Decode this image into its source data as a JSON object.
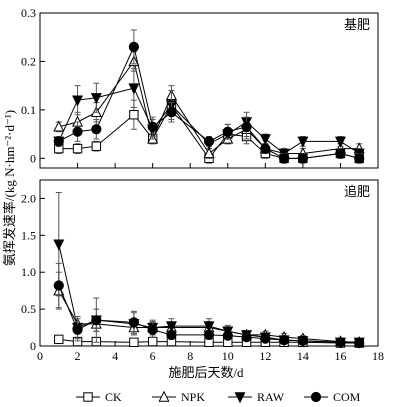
{
  "chart_data": {
    "type": "line",
    "xlabel": "施肥后天数/d",
    "ylabel": "氨挥发速率/(kg N·hm⁻²·d⁻¹)",
    "x": [
      1,
      2,
      3,
      5,
      6,
      7,
      9,
      10,
      11,
      12,
      13,
      14,
      16,
      17
    ],
    "x_range": [
      0,
      18
    ],
    "x_ticks": [
      "0",
      "2",
      "4",
      "6",
      "8",
      "10",
      "12",
      "14",
      "16",
      "18"
    ],
    "legend_position": "bottom",
    "series_styles": [
      {
        "name": "CK",
        "marker": "square-open"
      },
      {
        "name": "NPK",
        "marker": "triangle-up-open"
      },
      {
        "name": "RAW",
        "marker": "triangle-down-filled"
      },
      {
        "name": "COM",
        "marker": "circle-filled"
      }
    ],
    "panels": [
      {
        "tag": "基肥",
        "ylim": [
          -0.02,
          0.3
        ],
        "y_ticks": [
          "0",
          "0.1",
          "0.2",
          "0.3"
        ],
        "series": [
          {
            "name": "CK",
            "y": [
              0.02,
              0.02,
              0.025,
              0.09,
              0.04,
              0.11,
              0.0,
              0.05,
              0.045,
              0.01,
              0.0,
              0.0,
              0.01,
              0.0
            ],
            "err": [
              0.01,
              0.01,
              0.01,
              0.03,
              0.01,
              0.02,
              0.01,
              0.02,
              0.015,
              0.01,
              0.01,
              0.01,
              0.01,
              0.01
            ]
          },
          {
            "name": "NPK",
            "y": [
              0.065,
              0.075,
              0.095,
              0.2,
              0.04,
              0.13,
              0.01,
              0.04,
              0.06,
              0.02,
              0.01,
              0.01,
              0.02,
              0.02
            ],
            "err": [
              0.01,
              0.02,
              0.02,
              0.02,
              0.01,
              0.02,
              0.01,
              0.01,
              0.02,
              0.01,
              0.01,
              0.01,
              0.01,
              0.01
            ]
          },
          {
            "name": "RAW",
            "y": [
              0.035,
              0.12,
              0.125,
              0.145,
              0.06,
              0.11,
              0.03,
              0.05,
              0.075,
              0.04,
              0.01,
              0.035,
              0.035,
              0.01
            ],
            "err": [
              0.01,
              0.03,
              0.03,
              0.04,
              0.02,
              0.03,
              0.01,
              0.01,
              0.02,
              0.01,
              0.01,
              0.01,
              0.01,
              0.01
            ]
          },
          {
            "name": "COM",
            "y": [
              0.035,
              0.055,
              0.06,
              0.23,
              0.065,
              0.095,
              0.035,
              0.055,
              0.065,
              0.02,
              0.0,
              0.0,
              0.01,
              0.0
            ],
            "err": [
              0.01,
              0.02,
              0.02,
              0.035,
              0.02,
              0.02,
              0.01,
              0.015,
              0.02,
              0.01,
              0.01,
              0.01,
              0.01,
              0.01
            ]
          }
        ]
      },
      {
        "tag": "追肥",
        "ylim": [
          0,
          2.25
        ],
        "y_ticks": [
          "0",
          "0.5",
          "1.0",
          "1.5",
          "2.0"
        ],
        "series": [
          {
            "name": "CK",
            "y": [
              0.09,
              0.06,
              0.06,
              0.05,
              0.06,
              0.06,
              0.05,
              0.05,
              0.05,
              0.05,
              0.05,
              0.05,
              0.04,
              0.04
            ],
            "err": [
              0.03,
              0.02,
              0.02,
              0.02,
              0.02,
              0.02,
              0.02,
              0.02,
              0.02,
              0.02,
              0.02,
              0.02,
              0.02,
              0.02
            ]
          },
          {
            "name": "NPK",
            "y": [
              0.75,
              0.3,
              0.3,
              0.25,
              0.25,
              0.25,
              0.25,
              0.2,
              0.15,
              0.15,
              0.12,
              0.1,
              0.06,
              0.05
            ],
            "err": [
              0.25,
              0.1,
              0.1,
              0.1,
              0.08,
              0.08,
              0.08,
              0.06,
              0.06,
              0.05,
              0.05,
              0.04,
              0.03,
              0.03
            ]
          },
          {
            "name": "RAW",
            "y": [
              1.38,
              0.25,
              0.35,
              0.3,
              0.25,
              0.27,
              0.27,
              0.2,
              0.15,
              0.12,
              0.08,
              0.07,
              0.05,
              0.05
            ],
            "err": [
              0.7,
              0.15,
              0.15,
              0.15,
              0.1,
              0.1,
              0.1,
              0.08,
              0.06,
              0.05,
              0.04,
              0.03,
              0.02,
              0.02
            ]
          },
          {
            "name": "COM",
            "y": [
              0.82,
              0.22,
              0.35,
              0.32,
              0.22,
              0.15,
              0.15,
              0.14,
              0.12,
              0.1,
              0.08,
              0.07,
              0.05,
              0.04
            ],
            "err": [
              0.3,
              0.15,
              0.3,
              0.15,
              0.1,
              0.06,
              0.06,
              0.05,
              0.05,
              0.04,
              0.03,
              0.03,
              0.02,
              0.02
            ]
          }
        ]
      }
    ]
  }
}
